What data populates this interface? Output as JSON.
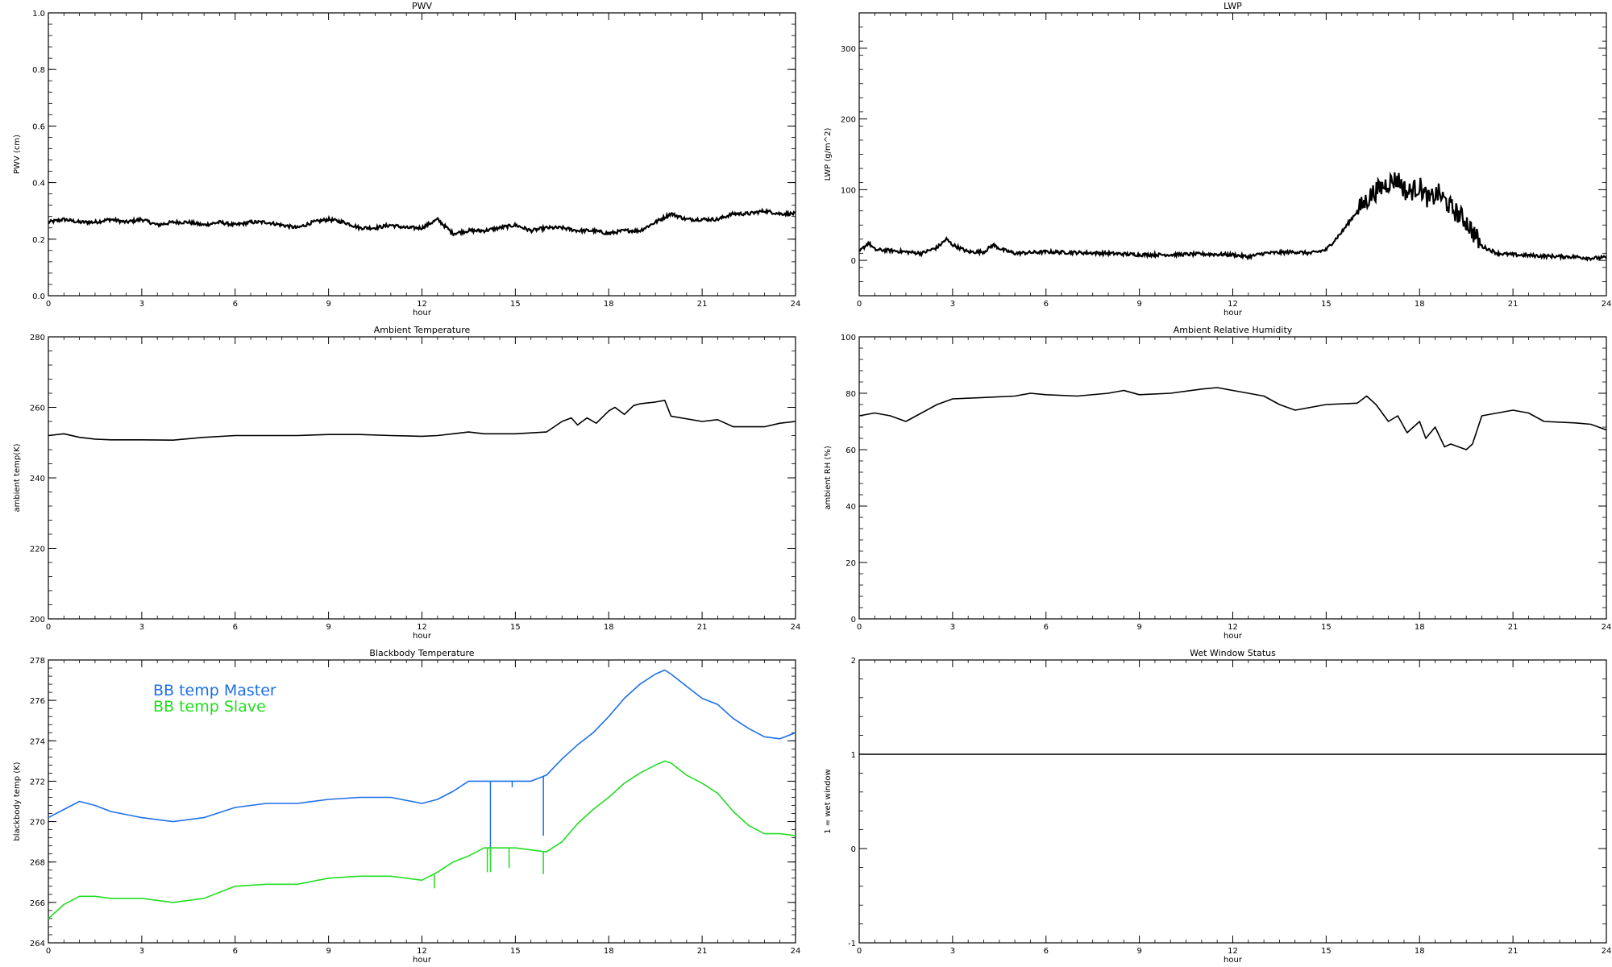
{
  "page": {
    "background": "#ffffff"
  },
  "chart_data": [
    {
      "type": "line",
      "title": "PWV",
      "xlabel": "hour",
      "ylabel": "PWV (cm)",
      "xlim": [
        0,
        24
      ],
      "ylim": [
        0,
        1
      ],
      "xticks": [
        "0",
        "3",
        "6",
        "9",
        "12",
        "15",
        "18",
        "21",
        "24"
      ],
      "yticks": [
        "0.0",
        "0.2",
        "0.4",
        "0.6",
        "0.8",
        "1.0"
      ],
      "grid": false,
      "series": [
        {
          "color": "#000000",
          "style": "noisy",
          "x": [
            0,
            0.5,
            1,
            1.5,
            2,
            2.5,
            3,
            3.5,
            4,
            4.5,
            5,
            5.5,
            6,
            6.5,
            7,
            7.5,
            8,
            8.5,
            9,
            9.5,
            10,
            10.5,
            11,
            11.5,
            12,
            12.5,
            13,
            13.5,
            14,
            14.5,
            15,
            15.5,
            16,
            16.5,
            17,
            17.5,
            18,
            18.5,
            19,
            19.5,
            20,
            20.5,
            21,
            21.5,
            22,
            22.5,
            23,
            23.5,
            24
          ],
          "values": [
            0.26,
            0.27,
            0.26,
            0.26,
            0.27,
            0.26,
            0.27,
            0.25,
            0.26,
            0.26,
            0.25,
            0.26,
            0.25,
            0.26,
            0.26,
            0.25,
            0.24,
            0.26,
            0.27,
            0.26,
            0.24,
            0.24,
            0.25,
            0.24,
            0.24,
            0.27,
            0.22,
            0.23,
            0.23,
            0.24,
            0.25,
            0.23,
            0.24,
            0.24,
            0.23,
            0.23,
            0.22,
            0.23,
            0.23,
            0.26,
            0.29,
            0.27,
            0.27,
            0.27,
            0.29,
            0.29,
            0.3,
            0.29,
            0.29
          ]
        }
      ]
    },
    {
      "type": "line",
      "title": "LWP",
      "xlabel": "hour",
      "ylabel": "LWP (g/m^2)",
      "xlim": [
        0,
        24
      ],
      "ylim": [
        -50,
        350
      ],
      "xticks": [
        "0",
        "3",
        "6",
        "9",
        "12",
        "15",
        "18",
        "21",
        "24"
      ],
      "yticks": [
        "0",
        "100",
        "200",
        "300"
      ],
      "grid": false,
      "series": [
        {
          "color": "#000000",
          "style": "noisy",
          "x": [
            0,
            0.3,
            0.5,
            1,
            1.5,
            2,
            2.5,
            2.8,
            3,
            3.5,
            4,
            4.3,
            4.6,
            5,
            6,
            7,
            8,
            9,
            10,
            11,
            12,
            12.5,
            13,
            14,
            14.5,
            15,
            15.5,
            16,
            16.5,
            17,
            17.3,
            17.6,
            18,
            18.3,
            18.6,
            19,
            19.5,
            20,
            20.5,
            21,
            22,
            23,
            23.5,
            24
          ],
          "values": [
            12,
            25,
            15,
            14,
            12,
            10,
            18,
            30,
            22,
            12,
            12,
            22,
            15,
            10,
            12,
            11,
            10,
            8,
            8,
            9,
            8,
            5,
            10,
            12,
            10,
            15,
            40,
            70,
            95,
            110,
            115,
            95,
            105,
            85,
            95,
            75,
            55,
            20,
            10,
            8,
            6,
            5,
            3,
            4
          ]
        }
      ]
    },
    {
      "type": "line",
      "title": "Ambient Temperature",
      "xlabel": "hour",
      "ylabel": "ambient temp(K)",
      "xlim": [
        0,
        24
      ],
      "ylim": [
        200,
        280
      ],
      "xticks": [
        "0",
        "3",
        "6",
        "9",
        "12",
        "15",
        "18",
        "21",
        "24"
      ],
      "yticks": [
        "200",
        "220",
        "240",
        "260",
        "280"
      ],
      "grid": false,
      "series": [
        {
          "color": "#000000",
          "style": "smooth",
          "x": [
            0,
            0.5,
            1,
            1.5,
            2,
            3,
            4,
            5,
            6,
            7,
            8,
            9,
            10,
            11,
            12,
            12.5,
            13,
            13.5,
            14,
            15,
            16,
            16.5,
            16.8,
            17,
            17.3,
            17.6,
            18,
            18.2,
            18.5,
            18.8,
            19,
            19.5,
            19.8,
            20,
            21,
            21.5,
            22,
            23,
            23.5,
            24
          ],
          "values": [
            252.0,
            252.5,
            251.5,
            251.0,
            250.8,
            250.8,
            250.7,
            251.5,
            252.0,
            252.0,
            252.0,
            252.3,
            252.3,
            252.0,
            251.8,
            252.0,
            252.5,
            253.0,
            252.5,
            252.5,
            253.0,
            256.0,
            257.0,
            255.0,
            257.0,
            255.5,
            259.0,
            260.0,
            258.0,
            260.5,
            261.0,
            261.5,
            262.0,
            257.5,
            256.0,
            256.5,
            254.5,
            254.5,
            255.5,
            256.0
          ]
        }
      ]
    },
    {
      "type": "line",
      "title": "Ambient Relative Humidity",
      "xlabel": "hour",
      "ylabel": "ambient RH (%)",
      "xlim": [
        0,
        24
      ],
      "ylim": [
        0,
        100
      ],
      "xticks": [
        "0",
        "3",
        "6",
        "9",
        "12",
        "15",
        "18",
        "21",
        "24"
      ],
      "yticks": [
        "0",
        "20",
        "40",
        "60",
        "80",
        "100"
      ],
      "grid": false,
      "series": [
        {
          "color": "#000000",
          "style": "smooth",
          "x": [
            0,
            0.5,
            1,
            1.5,
            2,
            2.5,
            3,
            4,
            5,
            5.5,
            6,
            7,
            8,
            8.5,
            9,
            10,
            11,
            11.5,
            12,
            13,
            13.5,
            14,
            15,
            16,
            16.3,
            16.6,
            17,
            17.3,
            17.6,
            18,
            18.2,
            18.5,
            18.8,
            19,
            19.5,
            19.7,
            20,
            20.5,
            21,
            21.5,
            22,
            23,
            23.5,
            24
          ],
          "values": [
            72,
            73,
            72,
            70,
            73,
            76,
            78,
            78.5,
            79,
            80,
            79.5,
            79,
            80,
            81,
            79.5,
            80,
            81.5,
            82,
            81,
            79,
            76,
            74,
            76,
            76.5,
            79,
            76,
            70,
            72,
            66,
            70,
            64,
            68,
            61,
            62,
            60,
            62,
            72,
            73,
            74,
            73,
            70,
            69.5,
            69,
            67
          ]
        }
      ]
    },
    {
      "type": "line",
      "title": "Blackbody Temperature",
      "xlabel": "hour",
      "ylabel": "blackbody temp (K)",
      "xlim": [
        0,
        24
      ],
      "ylim": [
        264,
        278
      ],
      "xticks": [
        "0",
        "3",
        "6",
        "9",
        "12",
        "15",
        "18",
        "21",
        "24"
      ],
      "yticks": [
        "264",
        "266",
        "268",
        "270",
        "272",
        "274",
        "276",
        "278"
      ],
      "grid": false,
      "legend": "top-left",
      "series": [
        {
          "name": "BB temp Master",
          "color": "#1e6fe8",
          "style": "smooth",
          "x": [
            0,
            0.5,
            1,
            1.5,
            2,
            3,
            4,
            5,
            6,
            7,
            8,
            9,
            10,
            11,
            12,
            12.5,
            13,
            13.5,
            14,
            14.5,
            15,
            15.5,
            16,
            16.5,
            17,
            17.5,
            18,
            18.5,
            19,
            19.5,
            19.8,
            20,
            20.5,
            21,
            21.5,
            22,
            22.5,
            23,
            23.5,
            24
          ],
          "values": [
            270.2,
            270.6,
            271.0,
            270.8,
            270.5,
            270.2,
            270.0,
            270.2,
            270.7,
            270.9,
            270.9,
            271.1,
            271.2,
            271.2,
            270.9,
            271.1,
            271.5,
            272.0,
            272.0,
            272.0,
            272.0,
            272.0,
            272.3,
            273.1,
            273.8,
            274.4,
            275.2,
            276.1,
            276.8,
            277.3,
            277.5,
            277.3,
            276.7,
            276.1,
            275.8,
            275.1,
            274.6,
            274.2,
            274.1,
            274.4
          ],
          "spikes": [
            {
              "x": 14.2,
              "to": 268.3
            },
            {
              "x": 14.9,
              "to": 271.7
            },
            {
              "x": 15.9,
              "to": 269.3
            }
          ]
        },
        {
          "name": "BB temp Slave",
          "color": "#22dd22",
          "style": "smooth",
          "x": [
            0,
            0.5,
            1,
            1.5,
            2,
            3,
            4,
            5,
            6,
            7,
            8,
            9,
            10,
            11,
            12,
            12.5,
            13,
            13.5,
            14,
            14.5,
            15,
            15.5,
            16,
            16.5,
            17,
            17.5,
            18,
            18.5,
            19,
            19.5,
            19.8,
            20,
            20.5,
            21,
            21.5,
            22,
            22.5,
            23,
            23.5,
            24
          ],
          "values": [
            265.2,
            265.9,
            266.3,
            266.3,
            266.2,
            266.2,
            266.0,
            266.2,
            266.8,
            266.9,
            266.9,
            267.2,
            267.3,
            267.3,
            267.1,
            267.5,
            268.0,
            268.3,
            268.7,
            268.7,
            268.7,
            268.6,
            268.5,
            269.0,
            269.9,
            270.6,
            271.2,
            271.9,
            272.4,
            272.8,
            273.0,
            272.9,
            272.3,
            271.9,
            271.4,
            270.5,
            269.8,
            269.4,
            269.4,
            269.3
          ],
          "spikes": [
            {
              "x": 12.4,
              "to": 266.7
            },
            {
              "x": 14.1,
              "to": 267.5
            },
            {
              "x": 14.2,
              "to": 267.5
            },
            {
              "x": 14.8,
              "to": 267.7
            },
            {
              "x": 15.9,
              "to": 267.4
            }
          ]
        }
      ]
    },
    {
      "type": "line",
      "title": "Wet Window Status",
      "xlabel": "hour",
      "ylabel": "1 = wet window",
      "xlim": [
        0,
        24
      ],
      "ylim": [
        -1,
        2
      ],
      "xticks": [
        "0",
        "3",
        "6",
        "9",
        "12",
        "15",
        "18",
        "21",
        "24"
      ],
      "yticks": [
        "-1",
        "0",
        "1",
        "2"
      ],
      "grid": false,
      "series": [
        {
          "color": "#000000",
          "style": "flat",
          "x": [
            0,
            24
          ],
          "values": [
            1,
            1
          ]
        }
      ]
    }
  ]
}
